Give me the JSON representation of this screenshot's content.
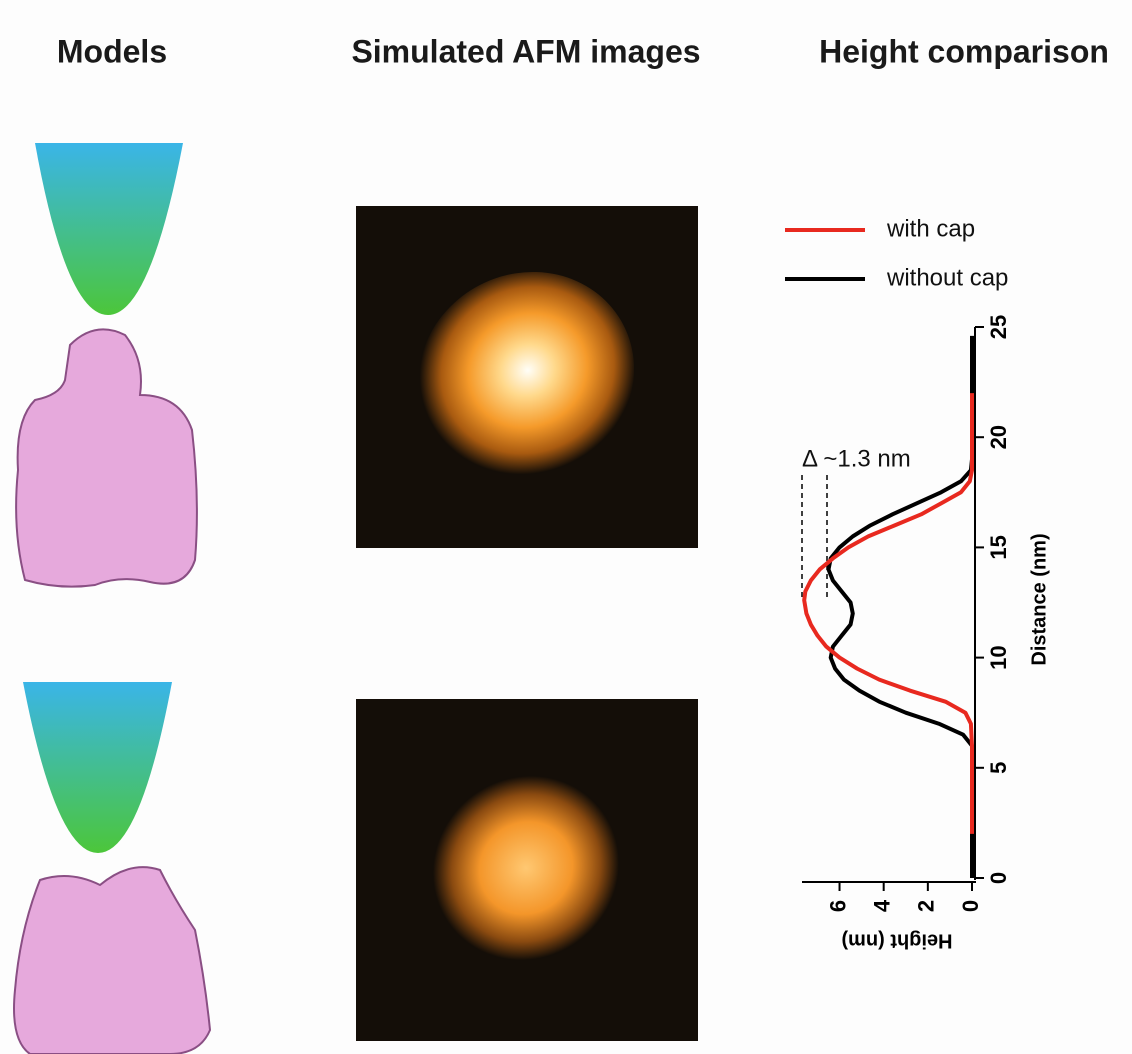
{
  "panel_titles": [
    "Models",
    "Simulated AFM images",
    "Height comparison"
  ],
  "chart_data": {
    "type": "line",
    "xlabel": "Distance (nm)",
    "ylabel": "Height (nm)",
    "annotation": "Δ ~1.3 nm",
    "xlim": [
      0,
      25
    ],
    "xticks": [
      0,
      5,
      10,
      15,
      20,
      25
    ],
    "ylim": [
      0,
      7.7
    ],
    "yticks": [
      0,
      2,
      4,
      6
    ],
    "series": [
      {
        "name": "with cap",
        "color": "#e8291f",
        "x": [
          2,
          6,
          7,
          7.5,
          8,
          8.5,
          9,
          9.5,
          10,
          10.5,
          11,
          11.5,
          12,
          12.6,
          13,
          13.5,
          14,
          14.5,
          15,
          15.5,
          16,
          16.5,
          17,
          17.5,
          18,
          18.5,
          22
        ],
        "values": [
          0,
          0,
          0.05,
          0.3,
          1.2,
          2.8,
          4.2,
          5.2,
          6.0,
          6.6,
          7.0,
          7.3,
          7.5,
          7.6,
          7.55,
          7.3,
          6.9,
          6.3,
          5.6,
          4.7,
          3.5,
          2.3,
          1.4,
          0.5,
          0.1,
          0,
          0
        ]
      },
      {
        "name": "without cap",
        "color": "#000000",
        "x": [
          0,
          6,
          6.5,
          7,
          7.5,
          8,
          8.5,
          9,
          9.5,
          10,
          10.5,
          11,
          11.5,
          12,
          12.5,
          13,
          13.5,
          14,
          14.5,
          15,
          15.5,
          16,
          16.5,
          17,
          17.5,
          18,
          18.5,
          19,
          24.6
        ],
        "values": [
          0,
          0,
          0.4,
          1.5,
          3.0,
          4.2,
          5.1,
          5.8,
          6.2,
          6.4,
          6.3,
          5.9,
          5.5,
          5.4,
          5.5,
          5.9,
          6.3,
          6.5,
          6.4,
          6.0,
          5.4,
          4.6,
          3.6,
          2.5,
          1.4,
          0.5,
          0.05,
          0,
          0
        ]
      }
    ]
  }
}
